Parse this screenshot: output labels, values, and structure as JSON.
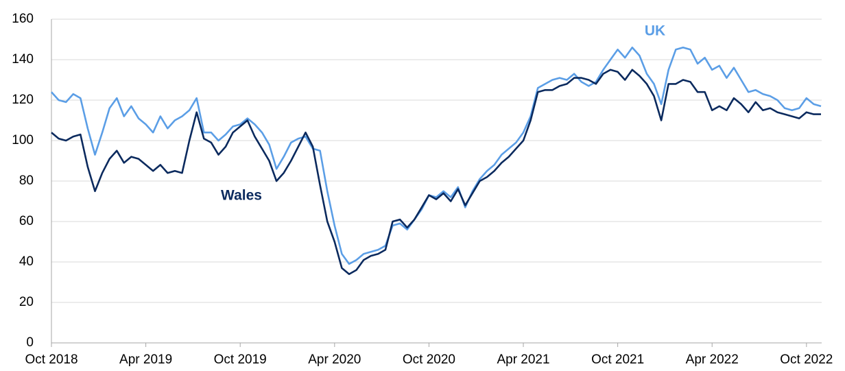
{
  "chart_data": {
    "type": "line",
    "categories": [
      "Oct 2018",
      null,
      null,
      null,
      null,
      null,
      null,
      null,
      null,
      null,
      null,
      null,
      null,
      "Apr 2019",
      null,
      null,
      null,
      null,
      null,
      null,
      null,
      null,
      null,
      null,
      null,
      null,
      "Oct 2019",
      null,
      null,
      null,
      null,
      null,
      null,
      null,
      null,
      null,
      null,
      null,
      null,
      "Apr 2020",
      null,
      null,
      null,
      null,
      null,
      null,
      null,
      null,
      null,
      null,
      null,
      null,
      "Oct 2020",
      null,
      null,
      null,
      null,
      null,
      null,
      null,
      null,
      null,
      null,
      null,
      null,
      "Apr 2021",
      null,
      null,
      null,
      null,
      null,
      null,
      null,
      null,
      null,
      null,
      null,
      null,
      "Oct 2021",
      null,
      null,
      null,
      null,
      null,
      null,
      null,
      null,
      null,
      null,
      null,
      null,
      "Apr 2022",
      null,
      null,
      null,
      null,
      null,
      null,
      null,
      null,
      null,
      null,
      null,
      null,
      "Oct 2022",
      null,
      null
    ],
    "series": [
      {
        "name": "UK",
        "color": "#5b9ee6",
        "values": [
          124,
          120,
          119,
          123,
          121,
          106,
          93,
          104,
          116,
          121,
          112,
          117,
          111,
          108,
          104,
          112,
          106,
          110,
          112,
          115,
          121,
          104,
          104,
          100,
          103,
          107,
          108,
          111,
          108,
          104,
          98,
          86,
          92,
          99,
          101,
          102,
          96,
          95,
          75,
          58,
          44,
          39,
          41,
          44,
          45,
          46,
          48,
          58,
          59,
          56,
          61,
          66,
          73,
          72,
          75,
          72,
          77,
          67,
          75,
          81,
          85,
          88,
          93,
          96,
          99,
          104,
          112,
          126,
          128,
          130,
          131,
          130,
          133,
          129,
          127,
          129,
          135,
          140,
          145,
          141,
          146,
          142,
          133,
          128,
          118,
          135,
          145,
          146,
          145,
          138,
          141,
          135,
          137,
          131,
          136,
          130,
          124,
          125,
          123,
          122,
          120,
          116,
          115,
          116,
          121,
          118,
          117
        ]
      },
      {
        "name": "Wales",
        "color": "#0b2a5e",
        "values": [
          104,
          101,
          100,
          102,
          103,
          87,
          75,
          84,
          91,
          95,
          89,
          92,
          91,
          88,
          85,
          88,
          84,
          85,
          84,
          100,
          114,
          101,
          99,
          93,
          97,
          104,
          107,
          110,
          102,
          96,
          90,
          80,
          84,
          90,
          97,
          104,
          97,
          78,
          60,
          50,
          37,
          34,
          36,
          41,
          43,
          44,
          46,
          60,
          61,
          57,
          61,
          67,
          73,
          71,
          74,
          70,
          76,
          68,
          74,
          80,
          82,
          85,
          89,
          92,
          96,
          100,
          110,
          124,
          125,
          125,
          127,
          128,
          131,
          131,
          130,
          128,
          133,
          135,
          134,
          130,
          135,
          132,
          128,
          122,
          110,
          128,
          128,
          130,
          129,
          124,
          124,
          115,
          117,
          115,
          121,
          118,
          114,
          119,
          115,
          116,
          114,
          113,
          112,
          111,
          114,
          113,
          113
        ]
      }
    ],
    "ylim": [
      0,
      160
    ],
    "yticks": [
      0,
      20,
      40,
      60,
      80,
      100,
      120,
      140,
      160
    ],
    "grid": true
  }
}
